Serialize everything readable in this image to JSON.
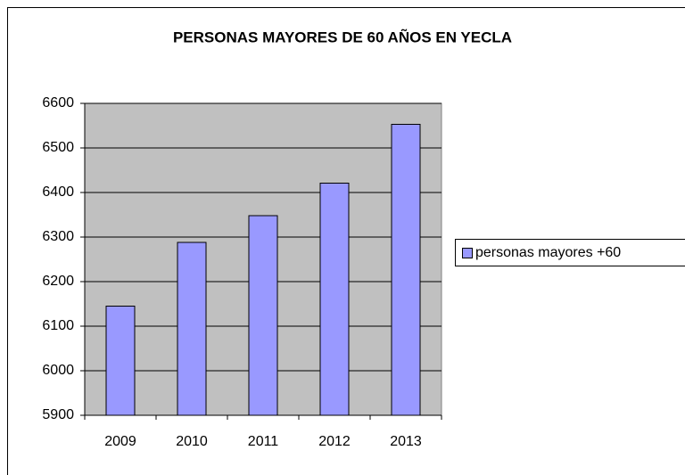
{
  "chart_data": {
    "type": "bar",
    "title": "PERSONAS MAYORES DE 60 AÑOS EN YECLA",
    "categories": [
      "2009",
      "2010",
      "2011",
      "2012",
      "2013"
    ],
    "series": [
      {
        "name": "personas mayores +60",
        "color": "#9999ff",
        "values": [
          6145,
          6288,
          6348,
          6421,
          6553
        ]
      }
    ],
    "ylim": [
      5900,
      6600
    ],
    "yticks": [
      5900,
      6000,
      6100,
      6200,
      6300,
      6400,
      6500,
      6600
    ],
    "grid": true,
    "plot_background": "#c0c0c0",
    "legend": "right"
  }
}
